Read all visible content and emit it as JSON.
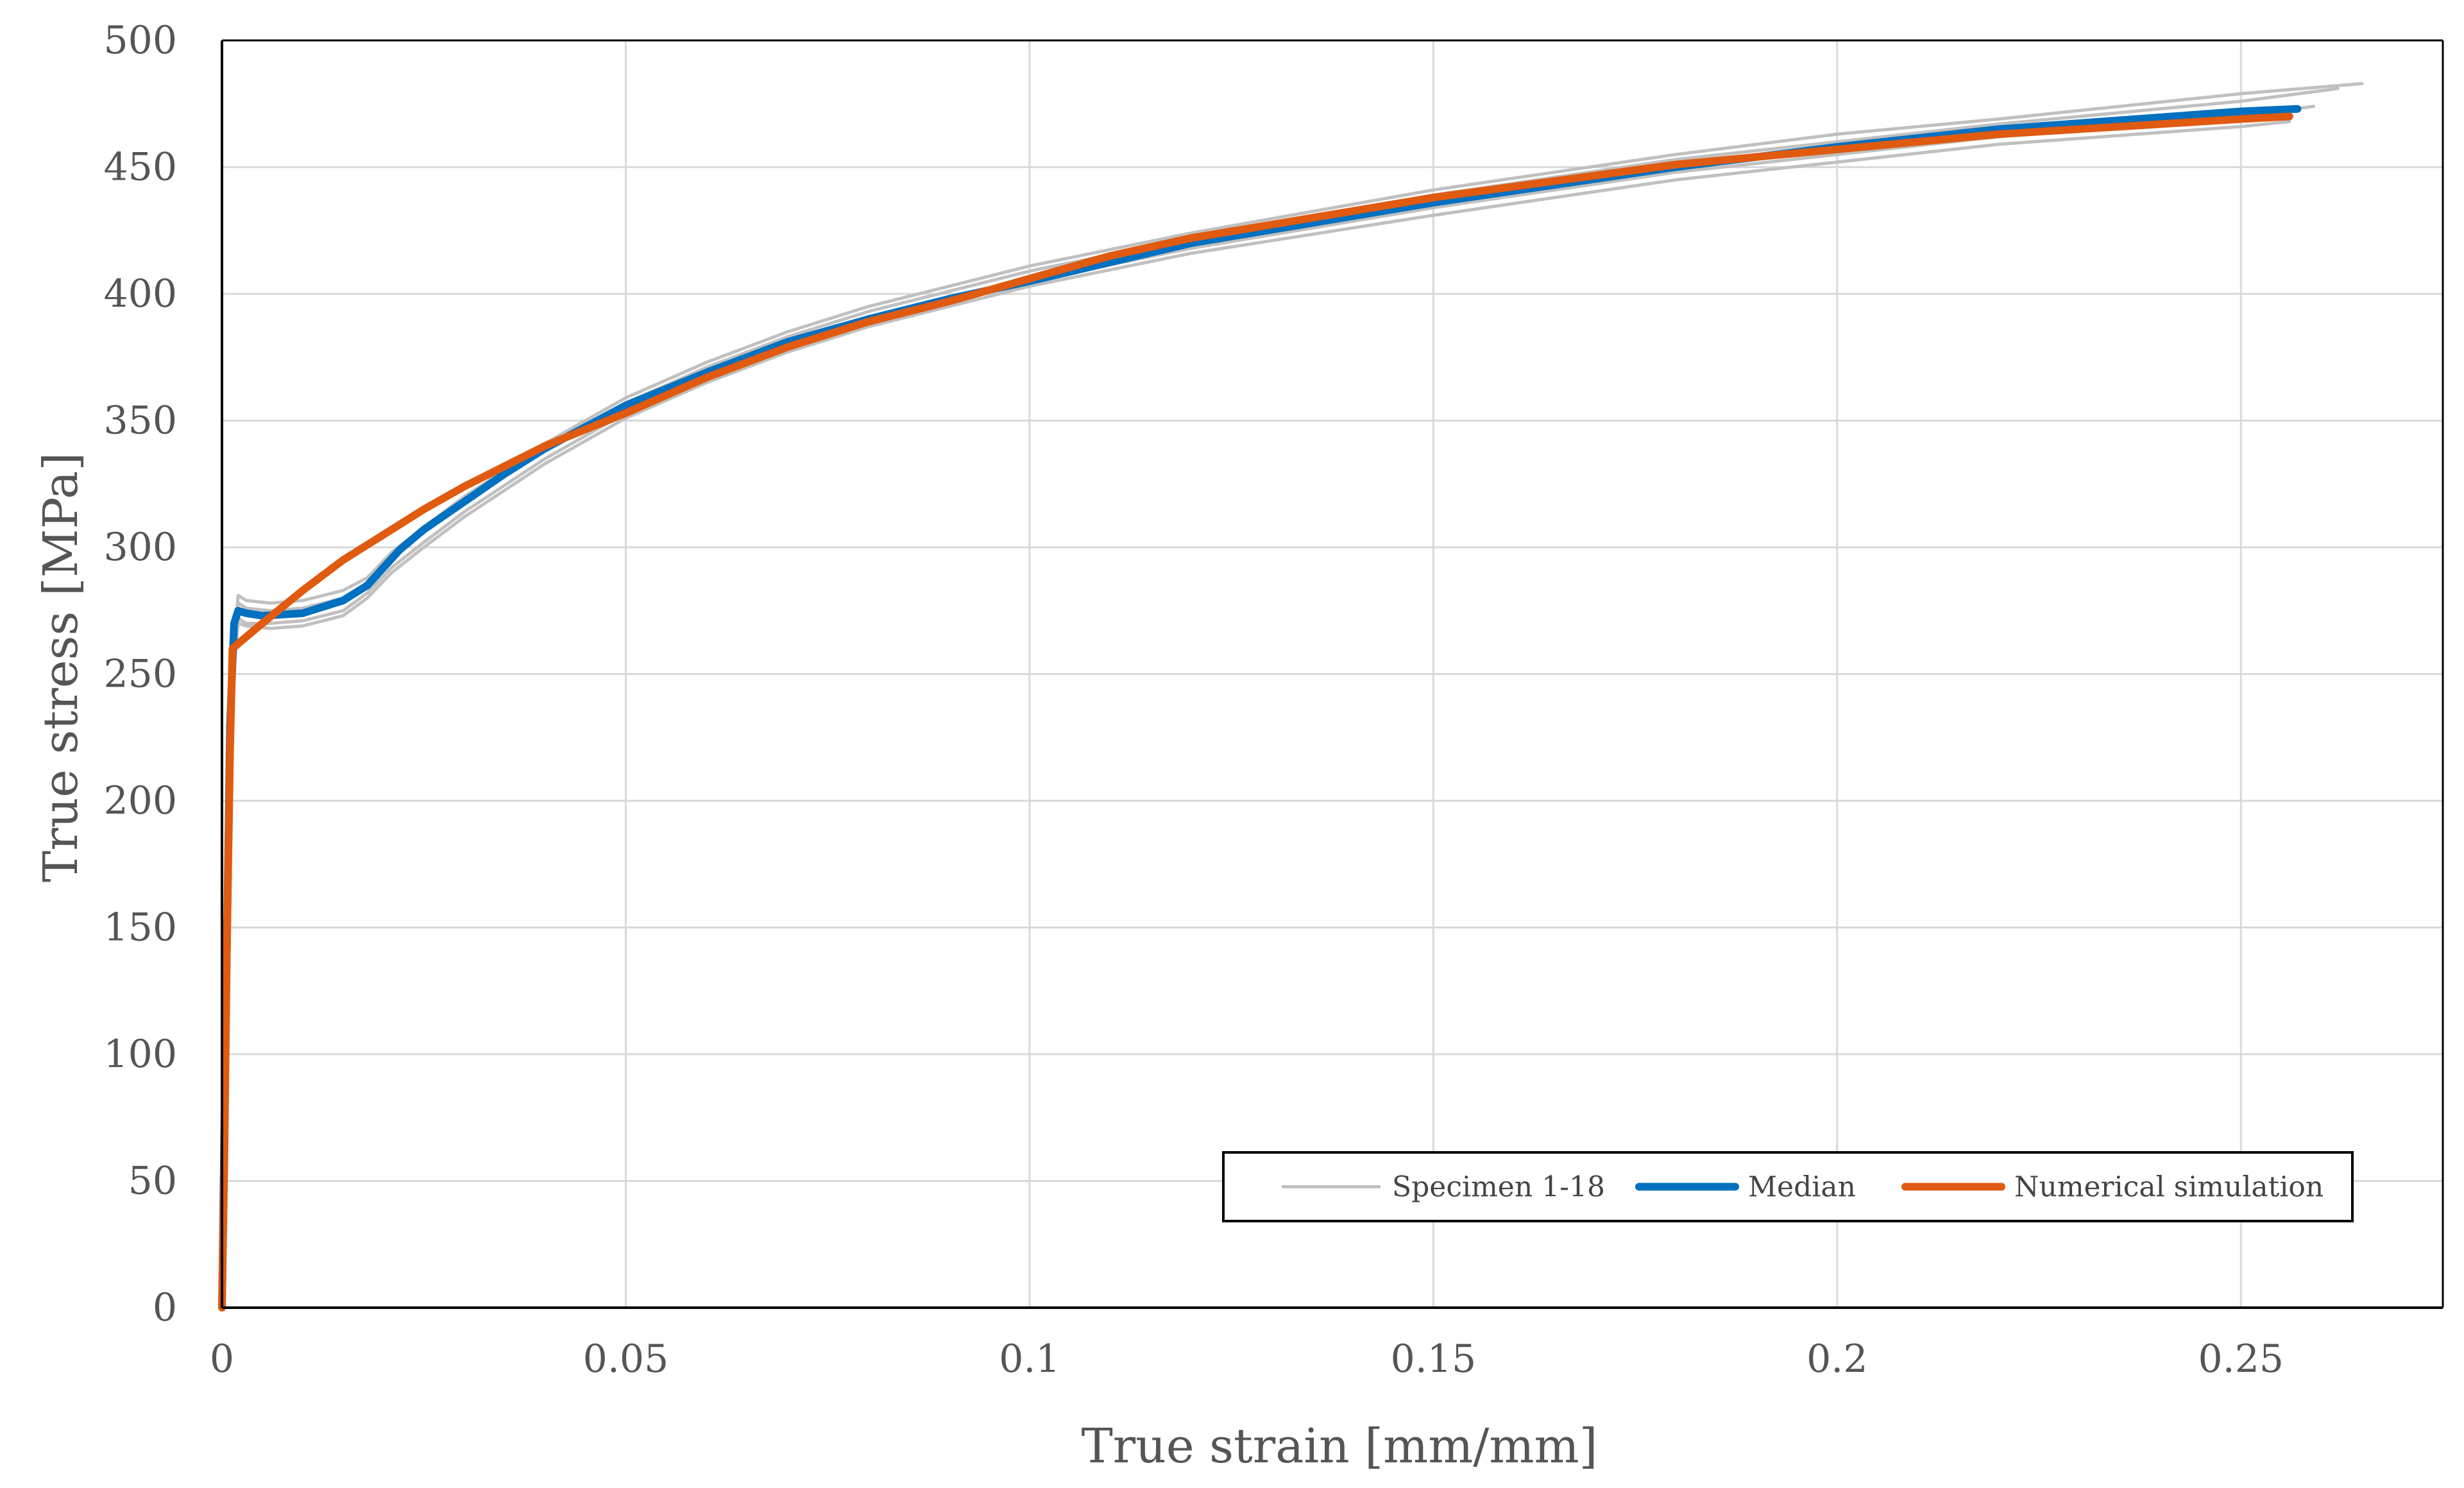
{
  "chart_data": {
    "type": "line",
    "title": "",
    "xlabel": "True strain [mm/mm]",
    "ylabel": "True stress [MPa]",
    "xlim": [
      0,
      0.275
    ],
    "ylim": [
      0,
      500
    ],
    "x_ticks": [
      0,
      0.05,
      0.1,
      0.15,
      0.2,
      0.25
    ],
    "x_tick_labels": [
      "0",
      "0.05",
      "0.1",
      "0.15",
      "0.2",
      "0.25"
    ],
    "y_ticks": [
      0,
      50,
      100,
      150,
      200,
      250,
      300,
      350,
      400,
      450,
      500
    ],
    "y_tick_labels": [
      "0",
      "50",
      "100",
      "150",
      "200",
      "250",
      "300",
      "350",
      "400",
      "450",
      "500"
    ],
    "grid": true,
    "legend": {
      "placement": "bottom-right",
      "entries": [
        "Specimen 1-18",
        "Median",
        "Numerical simulation"
      ]
    },
    "colors": {
      "specimen": "#c0c0c0",
      "median": "#0070c0",
      "simulation": "#e05a10"
    },
    "series": [
      {
        "name": "Specimen 1-18",
        "role": "specimen",
        "x": [
          0,
          0.0012,
          0.002,
          0.003,
          0.006,
          0.01,
          0.015,
          0.018,
          0.021,
          0.025,
          0.03,
          0.04,
          0.05,
          0.06,
          0.07,
          0.08,
          0.1,
          0.12,
          0.15,
          0.18,
          0.2,
          0.22,
          0.25,
          0.265
        ],
        "y": [
          0,
          250,
          281,
          279,
          278,
          279,
          283,
          288,
          298,
          308,
          320,
          341,
          359,
          373,
          385,
          395,
          411,
          424,
          441,
          455,
          463,
          469,
          479,
          483
        ]
      },
      {
        "name": "Specimen 1-18",
        "role": "specimen",
        "x": [
          0,
          0.0012,
          0.002,
          0.003,
          0.006,
          0.01,
          0.015,
          0.018,
          0.021,
          0.025,
          0.03,
          0.04,
          0.05,
          0.06,
          0.07,
          0.08,
          0.1,
          0.12,
          0.15,
          0.18,
          0.2,
          0.22,
          0.25,
          0.262
        ],
        "y": [
          0,
          248,
          278,
          276,
          275,
          276,
          280,
          286,
          296,
          306,
          318,
          339,
          357,
          371,
          383,
          393,
          409,
          422,
          439,
          453,
          460,
          467,
          476,
          481
        ]
      },
      {
        "name": "Specimen 1-18",
        "role": "specimen",
        "x": [
          0,
          0.0012,
          0.002,
          0.003,
          0.006,
          0.01,
          0.015,
          0.018,
          0.021,
          0.025,
          0.03,
          0.04,
          0.05,
          0.06,
          0.07,
          0.08,
          0.1,
          0.12,
          0.15,
          0.18,
          0.2,
          0.22,
          0.25,
          0.259
        ],
        "y": [
          0,
          245,
          272,
          270,
          270,
          271,
          275,
          282,
          292,
          302,
          314,
          335,
          353,
          367,
          379,
          389,
          405,
          418,
          434,
          448,
          455,
          462,
          470,
          474
        ]
      },
      {
        "name": "Specimen 1-18",
        "role": "specimen",
        "x": [
          0,
          0.0012,
          0.002,
          0.003,
          0.006,
          0.01,
          0.015,
          0.018,
          0.021,
          0.025,
          0.03,
          0.04,
          0.05,
          0.06,
          0.07,
          0.08,
          0.1,
          0.12,
          0.15,
          0.18,
          0.2,
          0.22,
          0.25,
          0.256
        ],
        "y": [
          0,
          243,
          270,
          269,
          268,
          269,
          273,
          280,
          290,
          300,
          312,
          333,
          351,
          365,
          377,
          387,
          403,
          416,
          431,
          445,
          452,
          459,
          466,
          468
        ]
      },
      {
        "name": "Median",
        "role": "median",
        "x": [
          0,
          0.0005,
          0.001,
          0.0015,
          0.002,
          0.003,
          0.005,
          0.01,
          0.015,
          0.018,
          0.02,
          0.022,
          0.025,
          0.03,
          0.035,
          0.04,
          0.05,
          0.06,
          0.07,
          0.08,
          0.09,
          0.1,
          0.12,
          0.15,
          0.18,
          0.2,
          0.22,
          0.25,
          0.257
        ],
        "y": [
          0,
          120,
          230,
          270,
          275,
          274,
          273,
          274,
          279,
          285,
          292,
          299,
          307,
          318,
          329,
          339,
          356,
          369,
          381,
          390,
          398,
          405,
          420,
          436,
          450,
          458,
          465,
          472,
          473
        ]
      },
      {
        "name": "Numerical simulation",
        "role": "simulation",
        "x": [
          0,
          0.0003,
          0.0006,
          0.001,
          0.0013,
          0.002,
          0.005,
          0.01,
          0.015,
          0.02,
          0.025,
          0.03,
          0.035,
          0.04,
          0.05,
          0.06,
          0.07,
          0.08,
          0.09,
          0.1,
          0.11,
          0.12,
          0.15,
          0.18,
          0.2,
          0.22,
          0.25,
          0.256
        ],
        "y": [
          0,
          60,
          140,
          220,
          260,
          262,
          270,
          283,
          295,
          305,
          315,
          324,
          332,
          340,
          353,
          367,
          379,
          389,
          397,
          406,
          415,
          422,
          438,
          451,
          457,
          463,
          469,
          470
        ]
      }
    ]
  }
}
